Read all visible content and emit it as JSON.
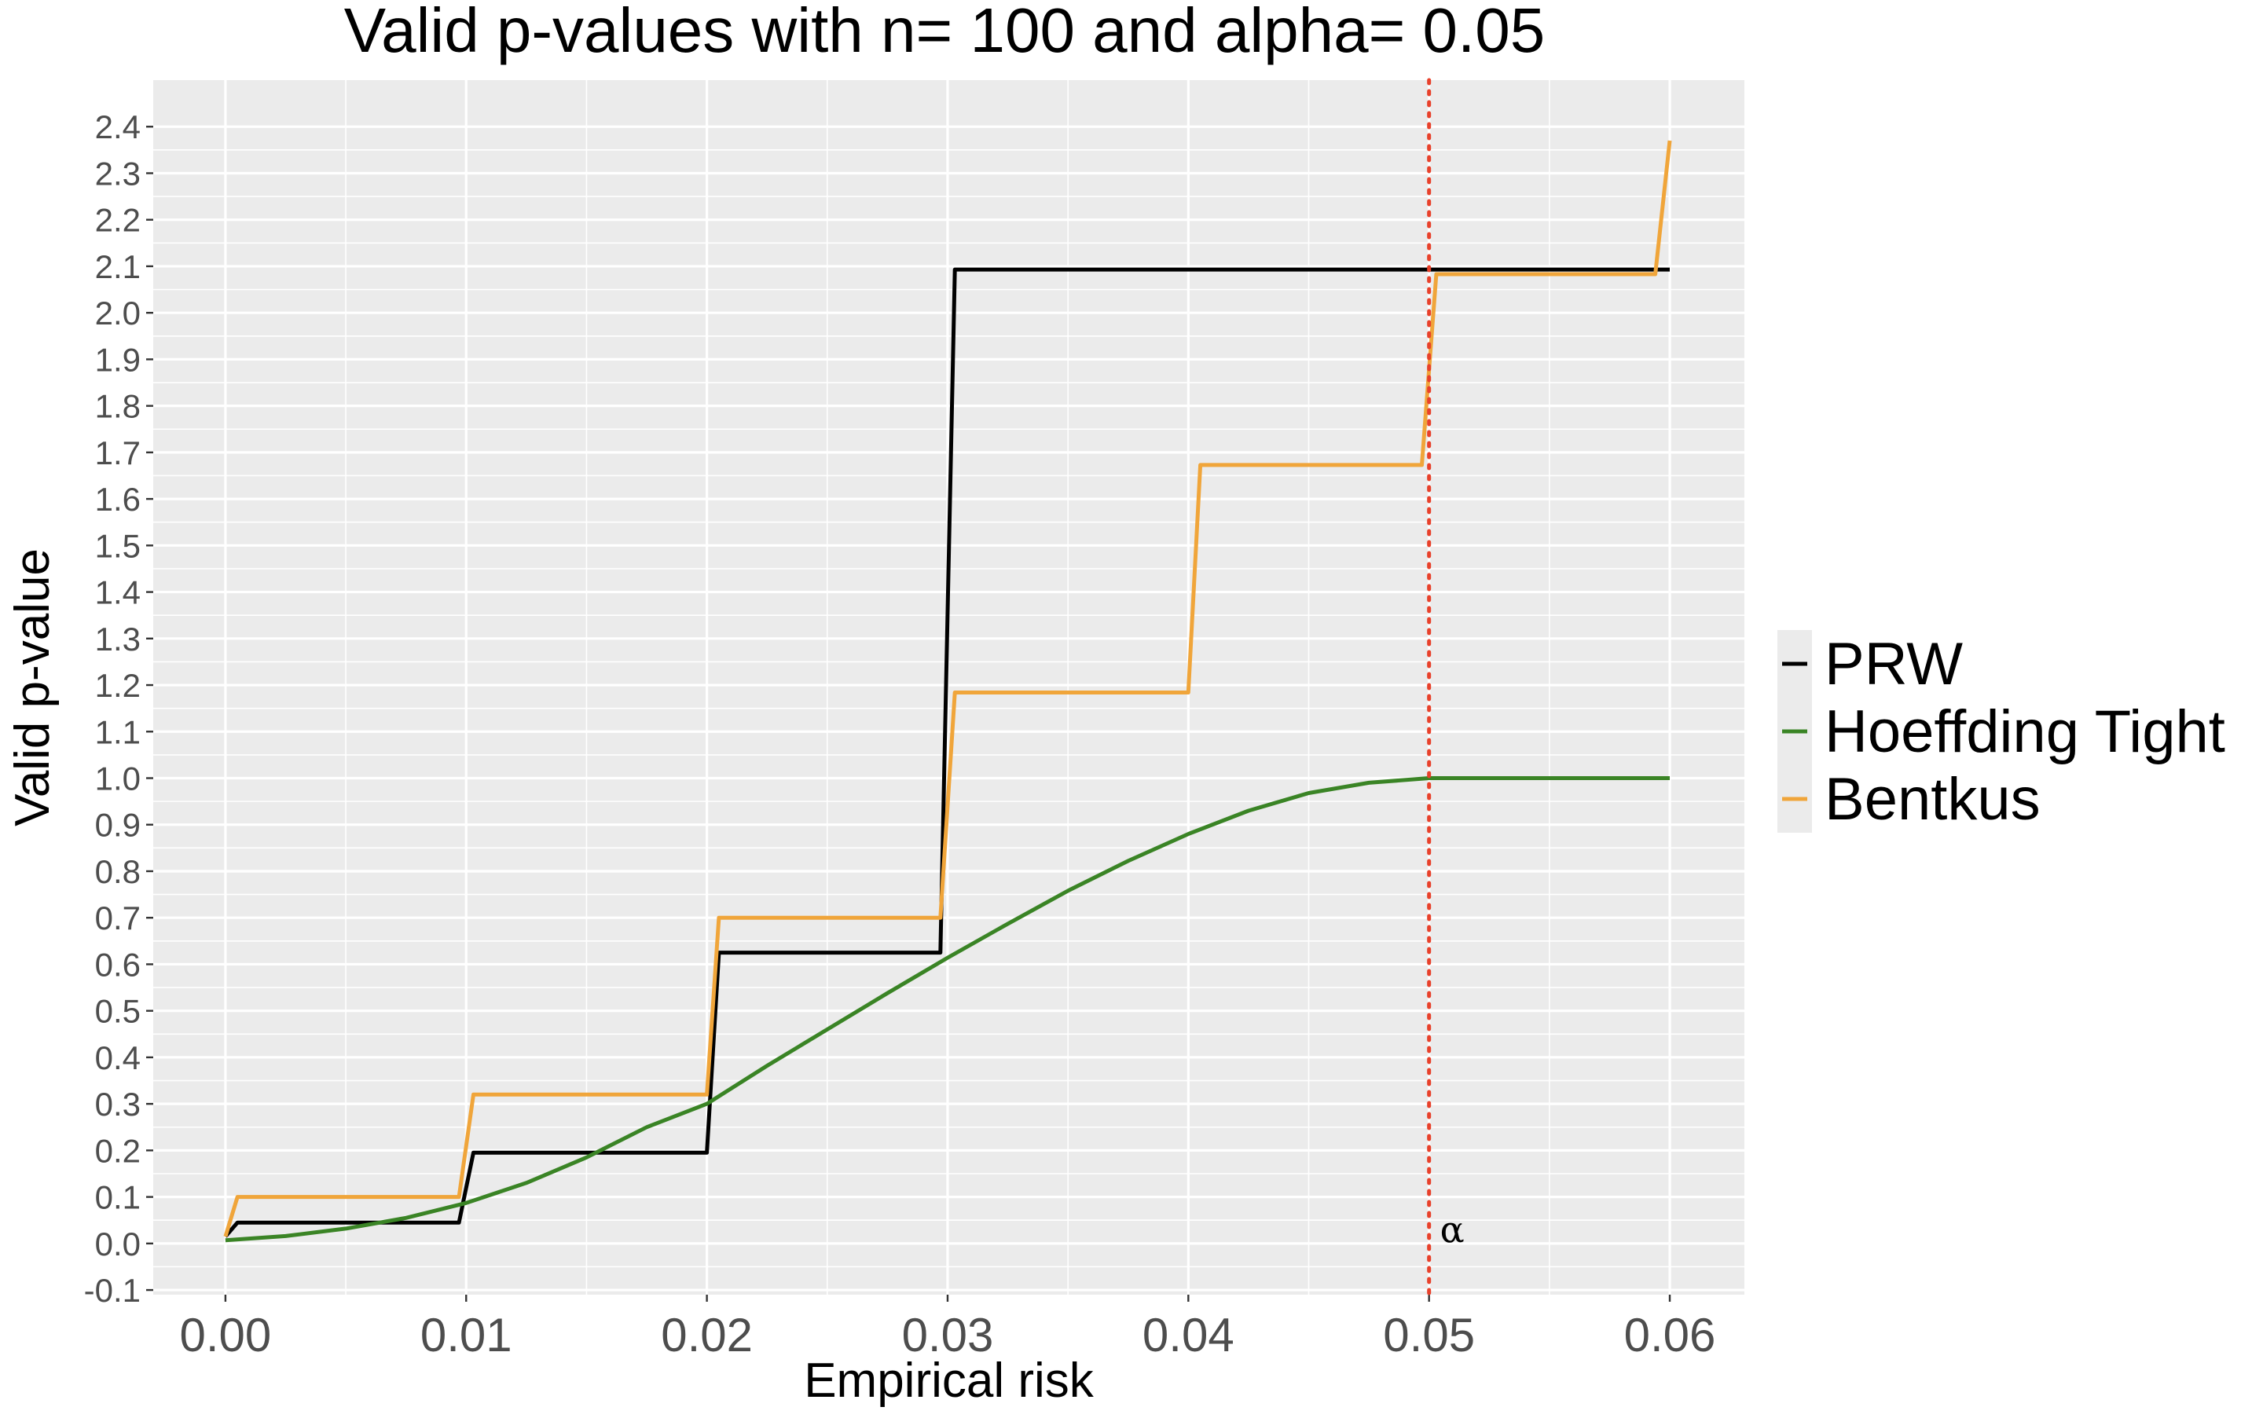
{
  "chart_data": {
    "type": "line",
    "title": "Valid p-values with n= 100  and alpha= 0.05",
    "xlabel": "Empirical risk",
    "ylabel": "Valid p-value",
    "xlim": [
      -0.003,
      0.0631
    ],
    "ylim": [
      -0.11,
      2.5
    ],
    "x_ticks": [
      0,
      0.01,
      0.02,
      0.03,
      0.04,
      0.05,
      0.06
    ],
    "x_tick_labels": [
      "0.00",
      "0.01",
      "0.02",
      "0.03",
      "0.04",
      "0.05",
      "0.06"
    ],
    "y_ticks": [
      -0.1,
      0,
      0.1,
      0.2,
      0.3,
      0.4,
      0.5,
      0.6,
      0.7,
      0.8,
      0.9,
      1.0,
      1.1,
      1.2,
      1.3,
      1.4,
      1.5,
      1.6,
      1.7,
      1.8,
      1.9,
      2.0,
      2.1,
      2.2,
      2.3,
      2.4
    ],
    "y_tick_labels": [
      "-0.1",
      "0.0",
      "0.1",
      "0.2",
      "0.3",
      "0.4",
      "0.5",
      "0.6",
      "0.7",
      "0.8",
      "0.9",
      "1.0",
      "1.1",
      "1.2",
      "1.3",
      "1.4",
      "1.5",
      "1.6",
      "1.7",
      "1.8",
      "1.9",
      "2.0",
      "2.1",
      "2.2",
      "2.3",
      "2.4"
    ],
    "grid": true,
    "background": "#ebebeb",
    "legend_position": "right",
    "series": [
      {
        "name": "PRW",
        "color": "#000000",
        "x": [
          0,
          0.0005,
          0.0097,
          0.0103,
          0.02,
          0.0205,
          0.0297,
          0.0303,
          0.06
        ],
        "y": [
          0.015,
          0.045,
          0.045,
          0.195,
          0.195,
          0.625,
          0.625,
          2.093,
          2.093
        ]
      },
      {
        "name": "Hoeffding Tight",
        "color": "#3a8425",
        "x": [
          0,
          0.0025,
          0.005,
          0.0075,
          0.01,
          0.0125,
          0.015,
          0.0175,
          0.02,
          0.0225,
          0.025,
          0.0275,
          0.03,
          0.0325,
          0.035,
          0.0375,
          0.04,
          0.0425,
          0.045,
          0.0475,
          0.05,
          0.055,
          0.06
        ],
        "y": [
          0.007,
          0.016,
          0.032,
          0.055,
          0.087,
          0.13,
          0.185,
          0.25,
          0.3,
          0.382,
          0.46,
          0.538,
          0.614,
          0.687,
          0.758,
          0.822,
          0.88,
          0.93,
          0.968,
          0.99,
          1.0,
          1.0,
          1.0
        ]
      },
      {
        "name": "Bentkus",
        "color": "#f0a53a",
        "x": [
          0,
          0.0005,
          0.0097,
          0.0103,
          0.02,
          0.0205,
          0.0297,
          0.0303,
          0.04,
          0.0405,
          0.0497,
          0.0503,
          0.0594,
          0.06
        ],
        "y": [
          0.015,
          0.1,
          0.1,
          0.32,
          0.32,
          0.7,
          0.7,
          1.184,
          1.184,
          1.673,
          1.673,
          2.083,
          2.083,
          2.37
        ]
      }
    ],
    "reference_line": {
      "x": 0.05,
      "color": "#e8412b",
      "style": "dotted",
      "label": "α"
    }
  }
}
